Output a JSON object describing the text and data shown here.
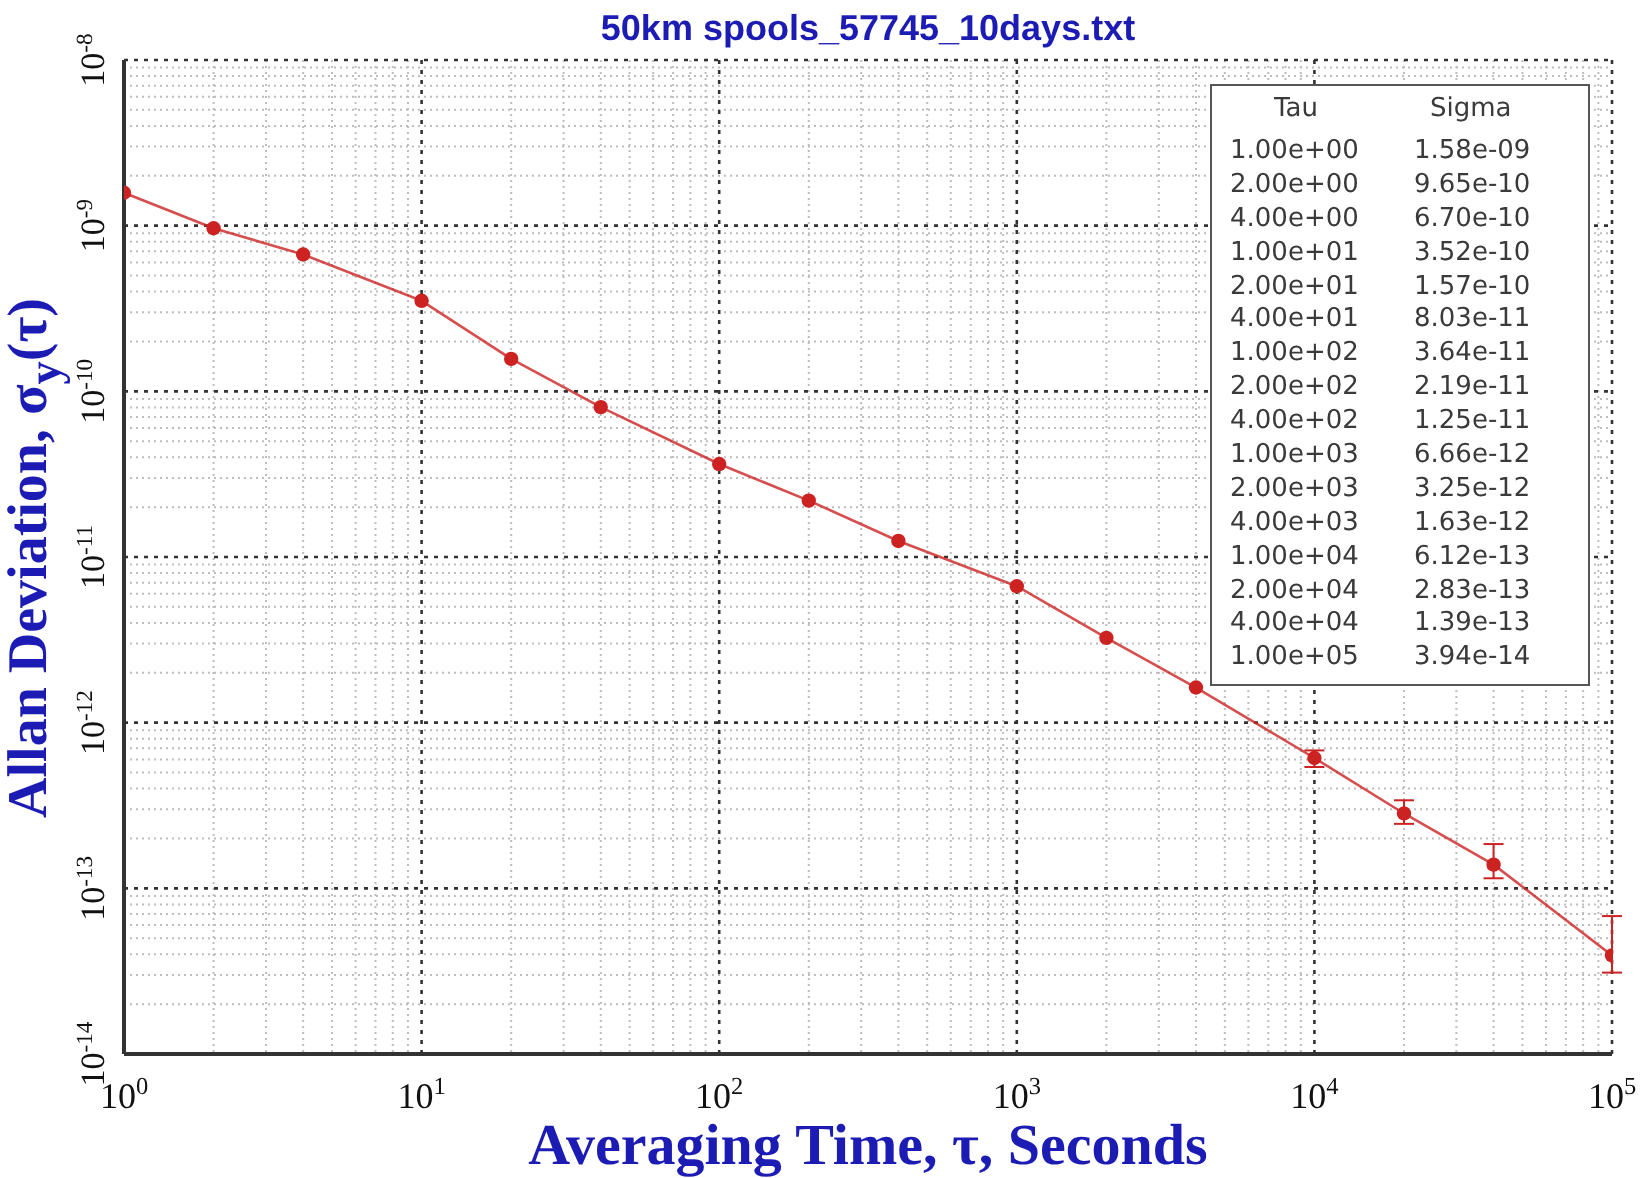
{
  "chart_data": [
    {
      "type": "line",
      "title": "50km spools_57745_10days.txt",
      "xlabel": "Averaging Time, τ, Seconds",
      "ylabel": "Allan Deviation, σ$_{y}$(τ)",
      "x": [
        1,
        2,
        4,
        10,
        20,
        40,
        100,
        200,
        400,
        1000,
        2000,
        4000,
        10000,
        20000,
        40000,
        100000
      ],
      "values": [
        1.58e-09,
        9.65e-10,
        6.7e-10,
        3.52e-10,
        1.57e-10,
        8.03e-11,
        3.64e-11,
        2.19e-11,
        1.25e-11,
        6.66e-12,
        3.25e-12,
        1.63e-12,
        6.12e-13,
        2.83e-13,
        1.39e-13,
        3.94e-14
      ],
      "errors": [
        null,
        null,
        null,
        null,
        null,
        null,
        null,
        null,
        null,
        null,
        null,
        null,
        [
          5.4e-13,
          6.8e-13
        ],
        [
          2.45e-13,
          3.4e-13
        ],
        [
          1.15e-13,
          1.85e-13
        ],
        [
          3.1e-14,
          6.8e-14
        ]
      ],
      "color": "#cc2222",
      "marker": "circle",
      "line_style": "solid",
      "xlim": [
        1,
        100000
      ],
      "ylim": [
        1e-14,
        1e-08
      ],
      "xticks": [
        {
          "value": 1,
          "label": "10$^{0}$"
        },
        {
          "value": 10,
          "label": "10$^{1}$"
        },
        {
          "value": 100,
          "label": "10$^{2}$"
        },
        {
          "value": 1000,
          "label": "10$^{3}$"
        },
        {
          "value": 10000,
          "label": "10$^{4}$"
        },
        {
          "value": 100000,
          "label": "10$^{5}$"
        }
      ],
      "yticks": [
        {
          "value": 1e-14,
          "label": "10$^{-14}$"
        },
        {
          "value": 1e-13,
          "label": "10$^{-13}$"
        },
        {
          "value": 1e-12,
          "label": "10$^{-12}$"
        },
        {
          "value": 1e-11,
          "label": "10$^{-11}$"
        },
        {
          "value": 1e-10,
          "label": "10$^{-10}$"
        },
        {
          "value": 1e-09,
          "label": "10$^{-9}$"
        },
        {
          "value": 1e-08,
          "label": "10$^{-8}$"
        }
      ],
      "log": "xy",
      "grid": true
    },
    {
      "type": "other",
      "annotations": [
        "Tau",
        "Sigma",
        "1.00e+00",
        "1.58e-09",
        "2.00e+00",
        "9.65e-10",
        "4.00e+00",
        "6.70e-10",
        "1.00e+01",
        "3.52e-10",
        "2.00e+01",
        "1.57e-10",
        "4.00e+01",
        "8.03e-11",
        "1.00e+02",
        "3.64e-11",
        "2.00e+02",
        "2.19e-11",
        "4.00e+02",
        "1.25e-11",
        "1.00e+03",
        "6.66e-12",
        "2.00e+03",
        "3.25e-12",
        "4.00e+03",
        "1.63e-12",
        "1.00e+04",
        "6.12e-13",
        "2.00e+04",
        "2.83e-13",
        "4.00e+04",
        "1.39e-13",
        "1.00e+05",
        "3.94e-14"
      ]
    }
  ]
}
